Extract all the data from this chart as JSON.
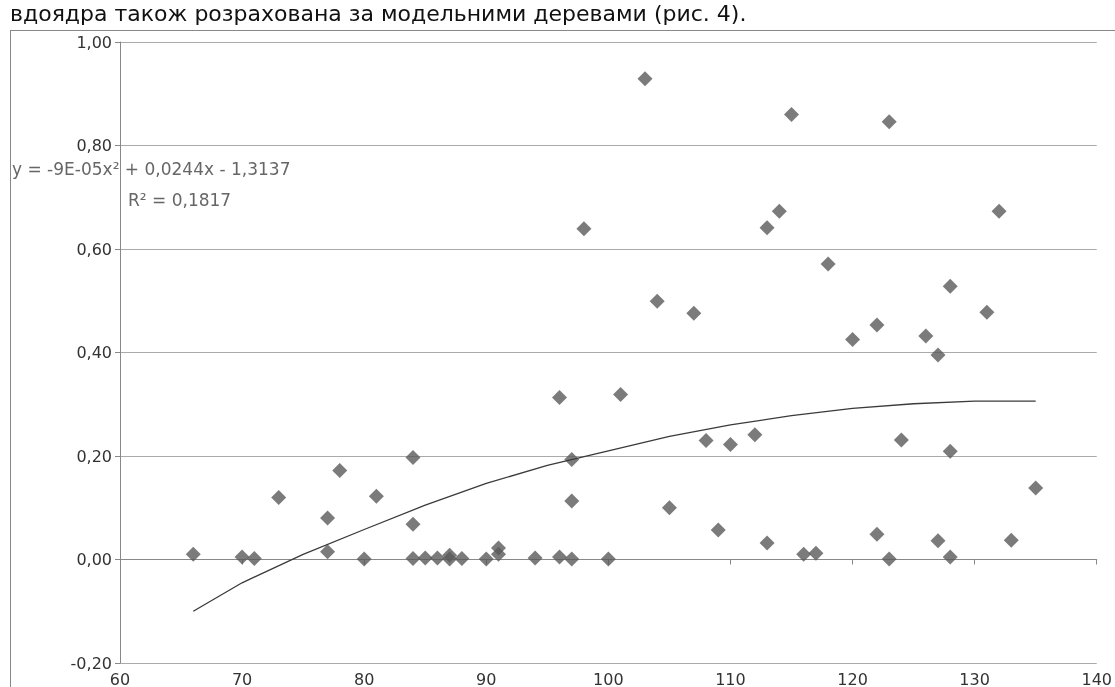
{
  "chart_data": {
    "type": "scatter",
    "annotations": [
      "вдоядра також розрахована за модельними деревами (рис. 4).",
      "y = -9E-05x² + 0,0244x - 1,3137",
      "R² = 0,1817"
    ],
    "marker": "diamond",
    "grid": "y",
    "xlim": [
      60,
      140
    ],
    "xticks": [
      60,
      70,
      80,
      90,
      100,
      110,
      120,
      130,
      140
    ],
    "ylim": [
      -0.2,
      1.0
    ],
    "yticks": [
      {
        "value": -0.2,
        "label": "-0,20"
      },
      {
        "value": 0,
        "label": "0,00"
      },
      {
        "value": 0.2,
        "label": "0,20"
      },
      {
        "value": 0.4,
        "label": "0,40"
      },
      {
        "value": 0.6,
        "label": "0,60"
      },
      {
        "value": 0.8,
        "label": "0,80"
      },
      {
        "value": 1.0,
        "label": "1,00"
      }
    ],
    "series": [
      {
        "type": "scatter",
        "color": "#5a5a5a",
        "x": [
          66,
          70,
          71,
          73,
          77,
          77,
          78,
          80,
          81,
          84,
          84,
          84,
          85,
          86,
          87,
          87,
          88,
          90,
          91,
          91,
          94,
          96,
          96,
          97,
          97,
          97,
          98,
          100,
          101,
          103,
          104,
          105,
          107,
          108,
          109,
          110,
          112,
          113,
          113,
          114,
          115,
          116,
          117,
          118,
          120,
          122,
          122,
          123,
          123,
          124,
          126,
          127,
          127,
          128,
          128,
          128,
          131,
          132,
          133,
          135
        ],
        "values": [
          0.01,
          0.005,
          0.002,
          0.12,
          0.08,
          0.015,
          0.172,
          0.001,
          0.122,
          0.197,
          0.068,
          0.002,
          0.003,
          0.003,
          0.008,
          0.001,
          0.002,
          0.001,
          0.022,
          0.01,
          0.003,
          0.313,
          0.005,
          0.193,
          0.113,
          0.001,
          0.639,
          0.001,
          0.319,
          0.929,
          0.499,
          0.1,
          0.476,
          0.23,
          0.057,
          0.222,
          0.241,
          0.641,
          0.032,
          0.673,
          0.86,
          0.01,
          0.012,
          0.571,
          0.425,
          0.453,
          0.049,
          0.846,
          0.001,
          0.231,
          0.432,
          0.395,
          0.036,
          0.528,
          0.209,
          0.005,
          0.478,
          0.673,
          0.037,
          0.138
        ]
      },
      {
        "type": "line",
        "color": "#3a3a3a",
        "marker": "none",
        "x": [
          66,
          70,
          75,
          80,
          85,
          90,
          95,
          100,
          105,
          110,
          115,
          120,
          125,
          130,
          135
        ],
        "values": [
          -0.1,
          -0.045,
          0.01,
          0.058,
          0.105,
          0.147,
          0.182,
          0.21,
          0.238,
          0.26,
          0.278,
          0.292,
          0.301,
          0.306,
          0.306
        ]
      }
    ]
  }
}
